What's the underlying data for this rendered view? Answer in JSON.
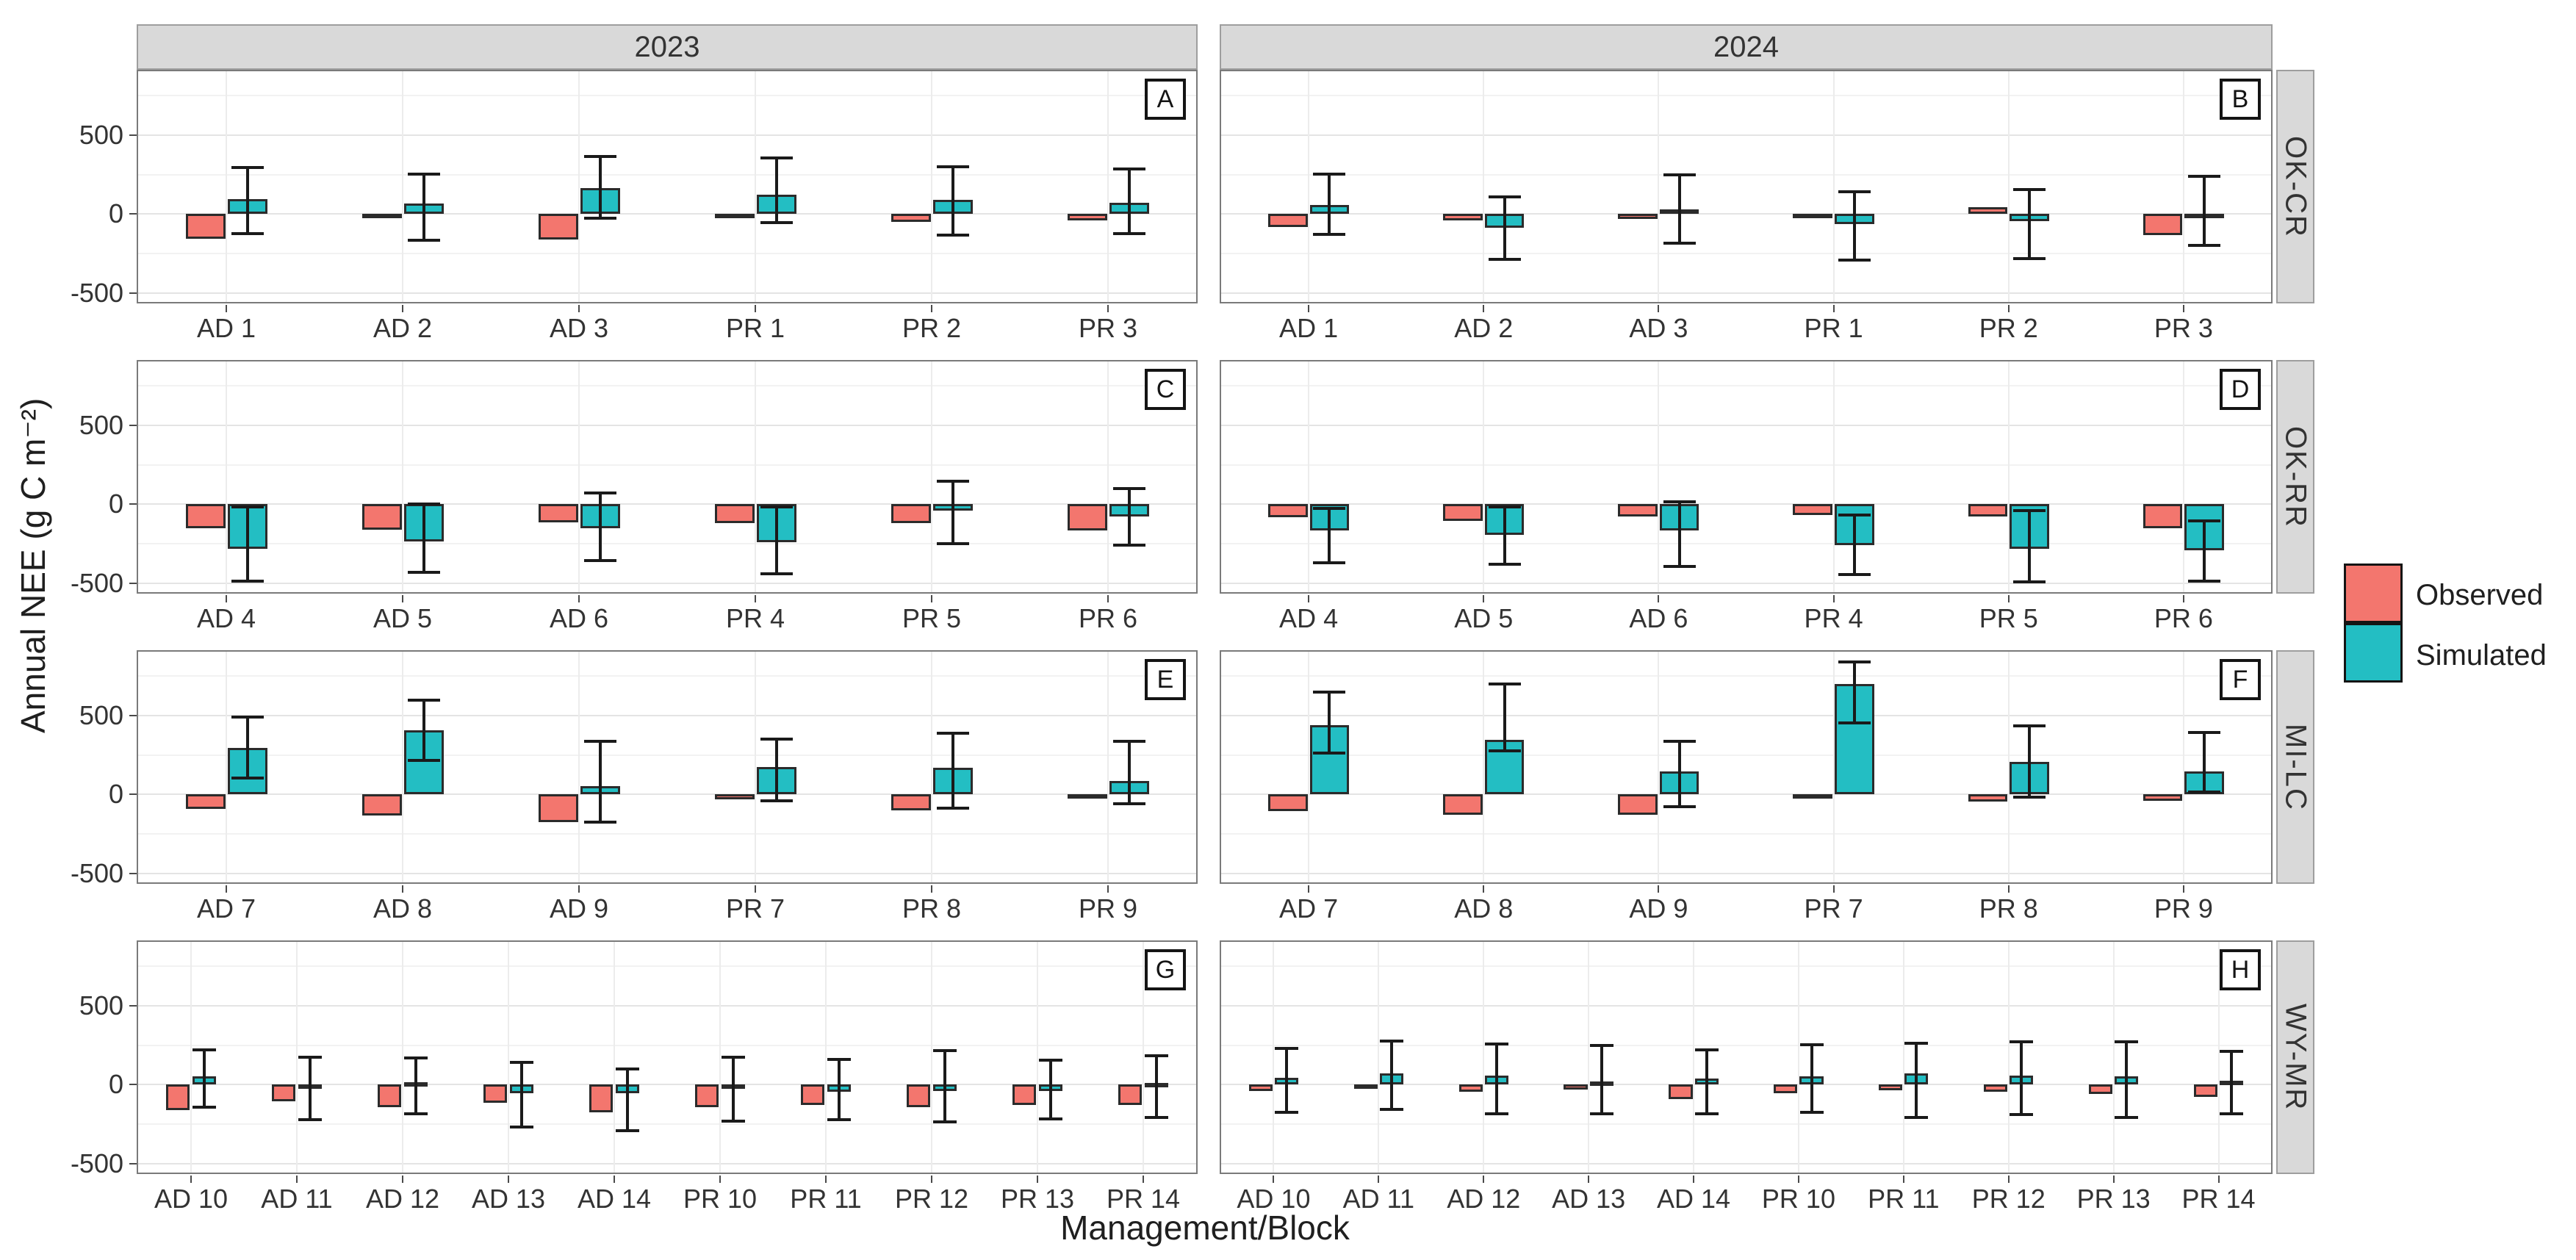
{
  "axes": {
    "y_label": "Annual NEE (g C m⁻²)",
    "x_label": "Management/Block",
    "y_ticks": [
      {
        "label": "500",
        "value": 500
      },
      {
        "label": "0",
        "value": 0
      },
      {
        "label": "-500",
        "value": -500
      }
    ],
    "minor_gridlines": [
      750,
      250,
      -250
    ],
    "y_domain_top": 905,
    "y_domain_bottom": -575
  },
  "col_headers": [
    "2023",
    "2024"
  ],
  "facets": [
    "OK-CR",
    "OK-RR",
    "MI-LC",
    "WY-MR"
  ],
  "legend": {
    "items": [
      {
        "label": "Observed",
        "color": "#F3766E"
      },
      {
        "label": "Simulated",
        "color": "#23BEC3"
      }
    ]
  },
  "colors": {
    "observed": "#F3766E",
    "simulated": "#23BEC3",
    "bar_border": "#2b2b2b",
    "error_bar": "#1a1a1a",
    "grid_major": "#e4e4e4",
    "grid_minor": "#f2f2f2",
    "grid_vertical": "#ececec",
    "strip_bg": "#d9d9d9"
  },
  "chart_data": {
    "type": "bar",
    "series_names": [
      "Observed",
      "Simulated"
    ],
    "error_bars_on": "Simulated",
    "panels": [
      {
        "id": "A",
        "row": 0,
        "col": 0,
        "year": "2023",
        "facet": "OK-CR",
        "categories": [
          "AD 1",
          "AD 2",
          "AD 3",
          "PR 1",
          "PR 2",
          "PR 3"
        ],
        "observed": [
          -155,
          -25,
          -160,
          -20,
          -50,
          -40
        ],
        "simulated": [
          95,
          65,
          165,
          125,
          90,
          70
        ],
        "err_lo": [
          -125,
          -165,
          -25,
          -55,
          -135,
          -125
        ],
        "err_hi": [
          295,
          255,
          365,
          355,
          300,
          285
        ]
      },
      {
        "id": "B",
        "row": 0,
        "col": 1,
        "year": "2024",
        "facet": "OK-CR",
        "categories": [
          "AD 1",
          "AD 2",
          "AD 3",
          "PR 1",
          "PR 2",
          "PR 3"
        ],
        "observed": [
          -80,
          -40,
          -30,
          -10,
          45,
          -135
        ],
        "simulated": [
          60,
          -85,
          30,
          -65,
          -45,
          -5
        ],
        "err_lo": [
          -130,
          -285,
          -185,
          -290,
          -280,
          -200
        ],
        "err_hi": [
          255,
          110,
          250,
          140,
          155,
          240
        ]
      },
      {
        "id": "C",
        "row": 1,
        "col": 0,
        "year": "2023",
        "facet": "OK-RR",
        "categories": [
          "AD 4",
          "AD 5",
          "AD 6",
          "PR 4",
          "PR 5",
          "PR 6"
        ],
        "observed": [
          -150,
          -160,
          -115,
          -120,
          -120,
          -165
        ],
        "simulated": [
          -280,
          -235,
          -150,
          -240,
          -40,
          -75
        ],
        "err_lo": [
          -485,
          -430,
          -355,
          -440,
          -250,
          -260
        ],
        "err_hi": [
          -15,
          0,
          70,
          -15,
          145,
          100
        ]
      },
      {
        "id": "D",
        "row": 1,
        "col": 1,
        "year": "2024",
        "facet": "OK-RR",
        "categories": [
          "AD 4",
          "AD 5",
          "AD 6",
          "PR 4",
          "PR 5",
          "PR 6"
        ],
        "observed": [
          -80,
          -105,
          -75,
          -70,
          -75,
          -150
        ],
        "simulated": [
          -165,
          -195,
          -165,
          -260,
          -280,
          -290
        ],
        "err_lo": [
          -370,
          -380,
          -395,
          -445,
          -490,
          -485
        ],
        "err_hi": [
          -25,
          -15,
          15,
          -70,
          -40,
          -105
        ]
      },
      {
        "id": "E",
        "row": 2,
        "col": 0,
        "year": "2023",
        "facet": "MI-LC",
        "categories": [
          "AD 7",
          "AD 8",
          "AD 9",
          "PR 7",
          "PR 8",
          "PR 9"
        ],
        "observed": [
          -90,
          -135,
          -175,
          -30,
          -100,
          -25
        ],
        "simulated": [
          295,
          405,
          55,
          175,
          170,
          85
        ],
        "err_lo": [
          105,
          215,
          -175,
          -40,
          -85,
          -60
        ],
        "err_hi": [
          490,
          600,
          335,
          350,
          390,
          335
        ]
      },
      {
        "id": "F",
        "row": 2,
        "col": 1,
        "year": "2024",
        "facet": "MI-LC",
        "categories": [
          "AD 7",
          "AD 8",
          "AD 9",
          "PR 7",
          "PR 8",
          "PR 9"
        ],
        "observed": [
          -105,
          -130,
          -130,
          -25,
          -45,
          -40
        ],
        "simulated": [
          440,
          345,
          145,
          700,
          205,
          145
        ],
        "err_lo": [
          265,
          275,
          -75,
          455,
          -15,
          15
        ],
        "err_hi": [
          650,
          700,
          335,
          840,
          435,
          395
        ]
      },
      {
        "id": "G",
        "row": 3,
        "col": 0,
        "year": "2023",
        "facet": "WY-MR",
        "categories": [
          "AD 10",
          "AD 11",
          "AD 12",
          "AD 13",
          "AD 14",
          "PR 10",
          "PR 11",
          "PR 12",
          "PR 13",
          "PR 14"
        ],
        "observed": [
          -160,
          -105,
          -140,
          -115,
          -175,
          -140,
          -130,
          -140,
          -130,
          -130
        ],
        "simulated": [
          55,
          -25,
          15,
          -55,
          -55,
          -10,
          -45,
          -40,
          -40,
          10
        ],
        "err_lo": [
          -140,
          -220,
          -185,
          -270,
          -290,
          -230,
          -220,
          -235,
          -215,
          -205
        ],
        "err_hi": [
          220,
          175,
          170,
          140,
          100,
          175,
          160,
          215,
          155,
          185
        ]
      },
      {
        "id": "H",
        "row": 3,
        "col": 1,
        "year": "2024",
        "facet": "WY-MR",
        "categories": [
          "AD 10",
          "AD 11",
          "AD 12",
          "AD 13",
          "AD 14",
          "PR 10",
          "PR 11",
          "PR 12",
          "PR 13",
          "PR 14"
        ],
        "observed": [
          -40,
          -25,
          -45,
          -30,
          -90,
          -55,
          -35,
          -45,
          -60,
          -75
        ],
        "simulated": [
          45,
          70,
          60,
          20,
          40,
          55,
          70,
          60,
          55,
          25
        ],
        "err_lo": [
          -175,
          -155,
          -185,
          -185,
          -185,
          -175,
          -205,
          -190,
          -205,
          -185
        ],
        "err_hi": [
          230,
          275,
          260,
          250,
          220,
          255,
          265,
          270,
          270,
          210
        ]
      }
    ]
  }
}
